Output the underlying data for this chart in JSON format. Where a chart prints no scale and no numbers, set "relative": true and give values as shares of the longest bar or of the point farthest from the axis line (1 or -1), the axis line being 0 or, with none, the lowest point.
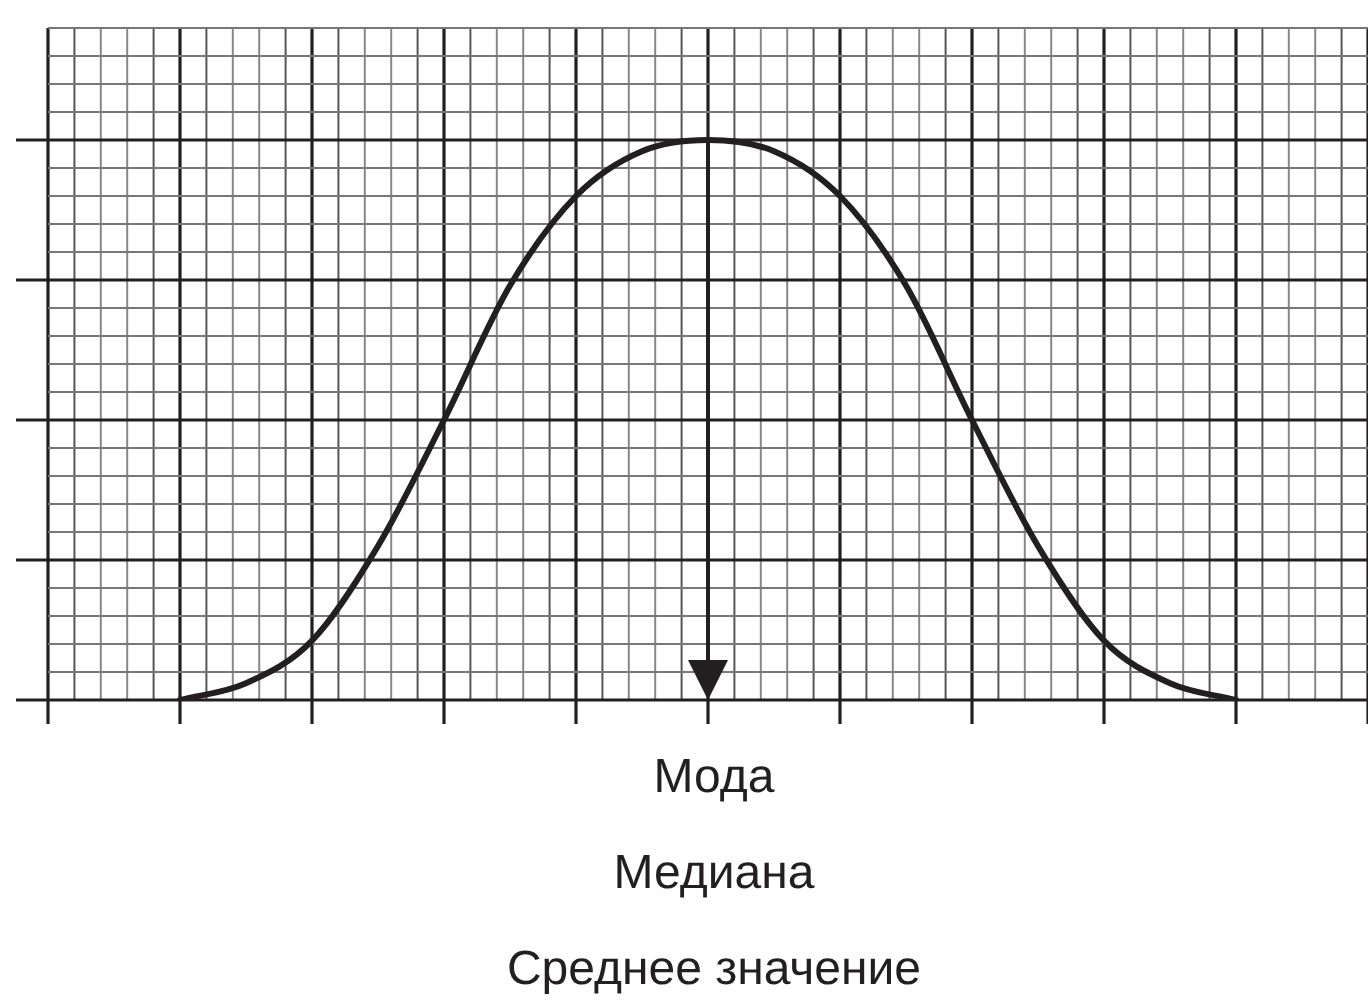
{
  "chart_data": {
    "type": "line",
    "relative": true,
    "grid": true,
    "marker": "none",
    "categories": [
      null,
      null,
      null,
      null,
      null,
      null,
      null,
      null,
      null,
      null,
      null,
      null,
      null,
      null,
      null,
      null,
      null,
      null,
      null,
      null,
      null
    ],
    "series": [
      {
        "color": "#231f20",
        "values": [
          null,
          null,
          0,
          0.03,
          0.106,
          0.275,
          0.5,
          0.74,
          0.9,
          0.98,
          1,
          0.98,
          0.9,
          0.74,
          0.5,
          0.275,
          0.106,
          0.03,
          0,
          null,
          null
        ]
      }
    ],
    "annotations": [
      "Мода",
      "Медиана",
      "Среднее значение"
    ]
  }
}
